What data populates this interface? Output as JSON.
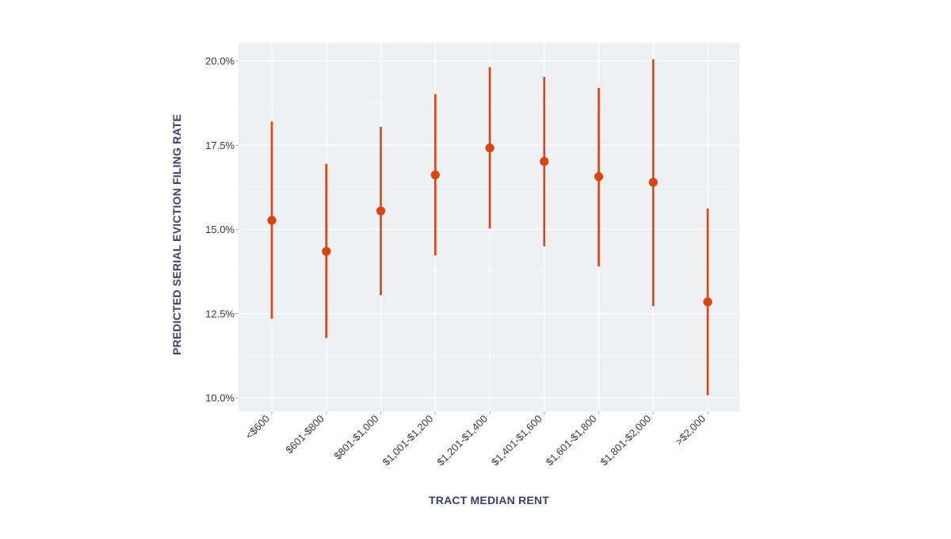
{
  "chart_data": {
    "type": "scatter",
    "subtype": "point-with-error-bars",
    "title": "",
    "xlabel": "TRACT MEDIAN RENT",
    "ylabel": "PREDICTED SERIAL EVICTION FILING RATE",
    "ylim": [
      9.7,
      20.6
    ],
    "yticks": [
      10.0,
      12.5,
      15.0,
      17.5,
      20.0
    ],
    "ytick_labels": [
      "10.0%",
      "12.5%",
      "15.0%",
      "17.5%",
      "20.0%"
    ],
    "grid": true,
    "legend": "none",
    "categories": [
      "<$600",
      "$601-$800",
      "$801-$1,000",
      "$1,001-$1,200",
      "$1,201-$1,400",
      "$1,401-$1,600",
      "$1,601-$1,800",
      "$1,801-$2,000",
      ">$2,000"
    ],
    "series": [
      {
        "values": [
          15.27,
          14.35,
          15.55,
          16.62,
          17.42,
          17.02,
          16.57,
          16.4,
          12.85
        ],
        "lower": [
          12.35,
          11.78,
          13.05,
          14.23,
          15.03,
          14.5,
          13.9,
          12.72,
          10.08
        ],
        "upper": [
          18.2,
          16.95,
          18.05,
          19.02,
          19.82,
          19.53,
          19.2,
          20.05,
          15.62
        ]
      }
    ],
    "colors": {
      "marker": "#d84412",
      "panel_background": "#eef0f3",
      "grid": "#ffffff",
      "axis_title": "#3d3f73"
    }
  }
}
